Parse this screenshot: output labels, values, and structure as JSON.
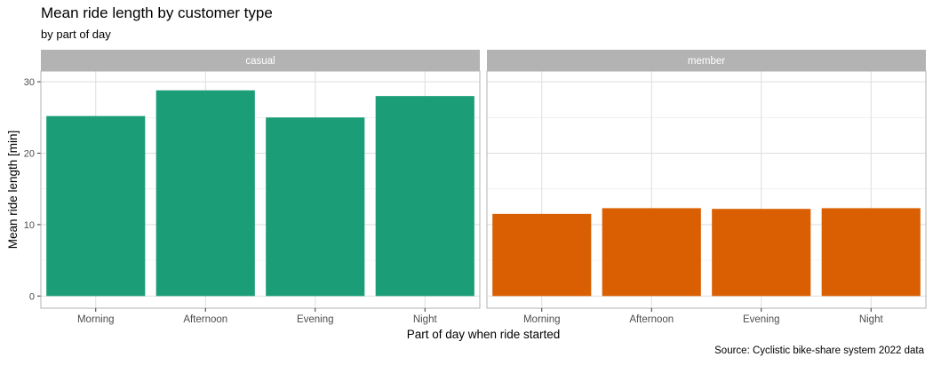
{
  "title": "Mean ride length by customer type",
  "subtitle": "by part of day",
  "caption": "Source: Cyclistic bike-share system 2022 data",
  "chart_data": {
    "type": "bar",
    "xlabel": "Part of day when ride started",
    "ylabel": "Mean ride length [min]",
    "categories": [
      "Morning",
      "Afternoon",
      "Evening",
      "Night"
    ],
    "ylim": [
      -1.7,
      31.5
    ],
    "yticks": [
      0,
      10,
      20,
      30
    ],
    "grid": true,
    "facets": [
      {
        "name": "casual",
        "color": "#1b9e77",
        "values": [
          25.2,
          28.8,
          25.0,
          28.0
        ]
      },
      {
        "name": "member",
        "color": "#d95f02",
        "values": [
          11.5,
          12.3,
          12.2,
          12.3
        ]
      }
    ]
  }
}
